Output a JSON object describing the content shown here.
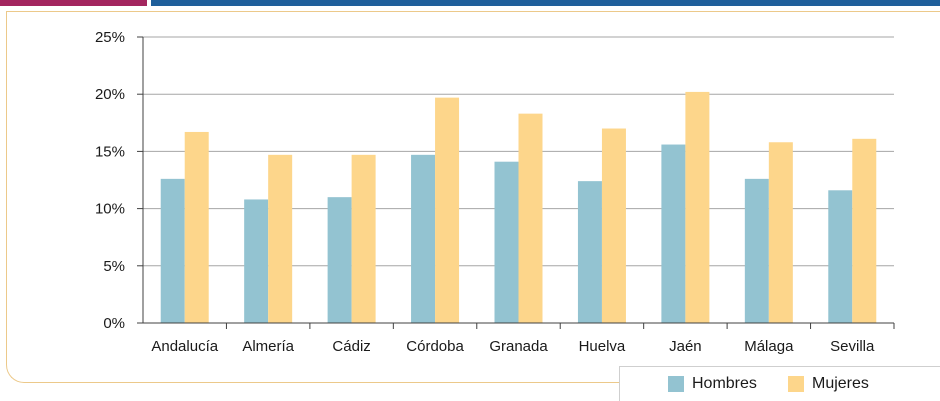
{
  "colors": {
    "bar_accent_left": "#a3265f",
    "bar_accent_right": "#1f5f9b",
    "frame": "#ecc98a",
    "hombres": "#93c3d1",
    "mujeres": "#fdd68b",
    "grid": "#a6a6a6",
    "axis": "#404040"
  },
  "chart_data": {
    "type": "bar",
    "title": "",
    "xlabel": "",
    "ylabel": "",
    "categories": [
      "Andalucía",
      "Almería",
      "Cádiz",
      "Córdoba",
      "Granada",
      "Huelva",
      "Jaén",
      "Málaga",
      "Sevilla"
    ],
    "series": [
      {
        "name": "Hombres",
        "values": [
          12.6,
          10.8,
          11.0,
          14.7,
          14.1,
          12.4,
          15.6,
          12.6,
          11.6
        ]
      },
      {
        "name": "Mujeres",
        "values": [
          16.7,
          14.7,
          14.7,
          19.7,
          18.3,
          17.0,
          20.2,
          15.8,
          16.1
        ]
      }
    ],
    "ylim": [
      0,
      25
    ],
    "yticks": [
      "0%",
      "5%",
      "10%",
      "15%",
      "20%",
      "25%"
    ],
    "grid": true,
    "legend_position": "bottom-right"
  }
}
